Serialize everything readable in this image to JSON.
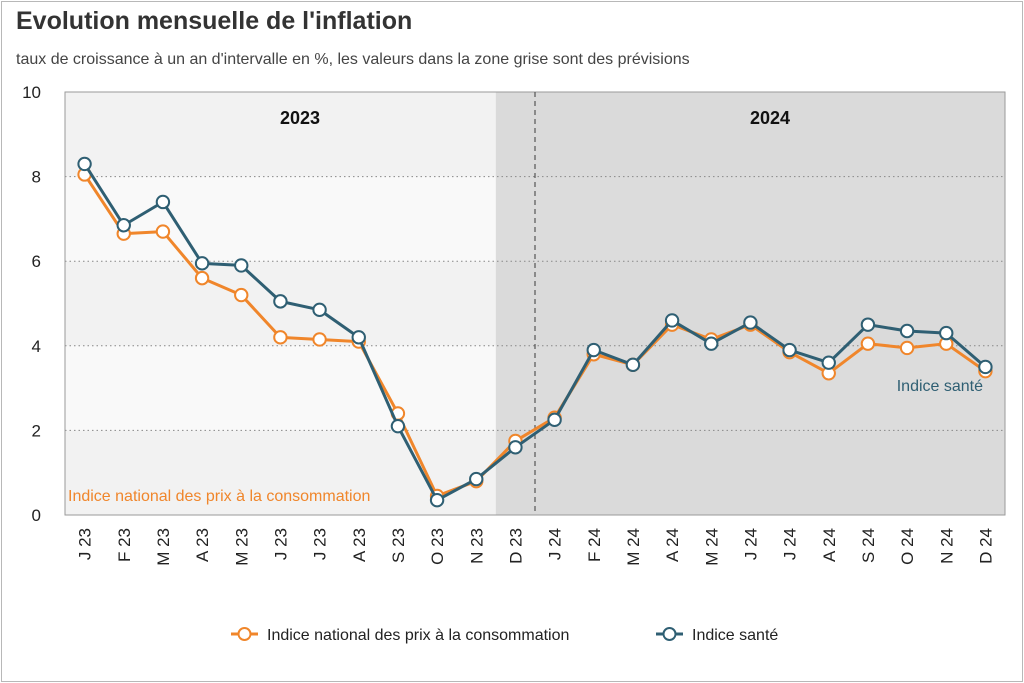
{
  "title": "Evolution mensuelle de l'inflation",
  "subtitle": "taux de croissance à un an d'intervalle en %, les valeurs dans la zone grise sont des prévisions",
  "colors": {
    "ipc": "#f0862b",
    "sante": "#2f5f73",
    "forecast_zone": "#d9d9d9",
    "plot_bg": "#f2f2f2"
  },
  "chart_data": {
    "type": "line",
    "title": "Evolution mensuelle de l'inflation",
    "subtitle": "taux de croissance à un an d'intervalle en %, les valeurs dans la zone grise sont des prévisions",
    "categories": [
      "J 23",
      "F 23",
      "M 23",
      "A 23",
      "M 23",
      "J 23",
      "J 23",
      "A 23",
      "S 23",
      "O 23",
      "N 23",
      "D 23",
      "J 24",
      "F 24",
      "M 24",
      "A 24",
      "M 24",
      "J 24",
      "J 24",
      "A 24",
      "S 24",
      "O 24",
      "N 24",
      "D 24"
    ],
    "ylim": [
      0,
      10
    ],
    "yticks": [
      0,
      2,
      4,
      6,
      8,
      10
    ],
    "grid": true,
    "forecast_start_index": 11,
    "year_divider_index": 12,
    "year_labels": [
      "2023",
      "2024"
    ],
    "legend_position": "bottom",
    "series": [
      {
        "name": "Indice national des prix à la consommation",
        "values": [
          8.05,
          6.65,
          6.7,
          5.6,
          5.2,
          4.2,
          4.15,
          4.1,
          2.4,
          0.45,
          0.8,
          1.75,
          2.3,
          3.8,
          3.55,
          4.5,
          4.15,
          4.5,
          3.85,
          3.35,
          4.05,
          3.95,
          4.05,
          3.4
        ]
      },
      {
        "name": "Indice santé",
        "values": [
          8.3,
          6.85,
          7.4,
          5.95,
          5.9,
          5.05,
          4.85,
          4.2,
          2.1,
          0.35,
          0.85,
          1.6,
          2.25,
          3.9,
          3.55,
          4.6,
          4.05,
          4.55,
          3.9,
          3.6,
          4.5,
          4.35,
          4.3,
          3.5
        ]
      }
    ],
    "annotations": [
      "Indice national des prix à la consommation",
      "Indice santé"
    ]
  }
}
